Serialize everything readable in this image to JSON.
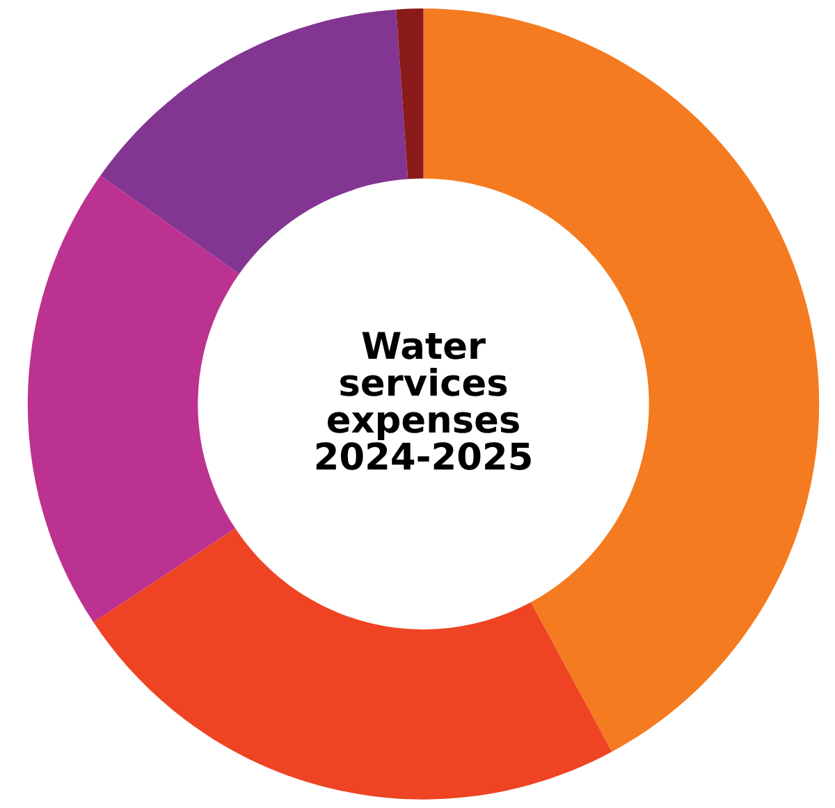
{
  "chart_data": {
    "type": "donut",
    "title": "Water\nservices\nexpenses\n2024-2025",
    "categories": [
      null,
      null,
      null,
      null,
      null
    ],
    "values": [
      42.1,
      23.6,
      19.1,
      14.1,
      1.1
    ],
    "colors": [
      "#f47b20",
      "#ee4423",
      "#bc3291",
      "#833592",
      "#8b1a1a"
    ]
  }
}
